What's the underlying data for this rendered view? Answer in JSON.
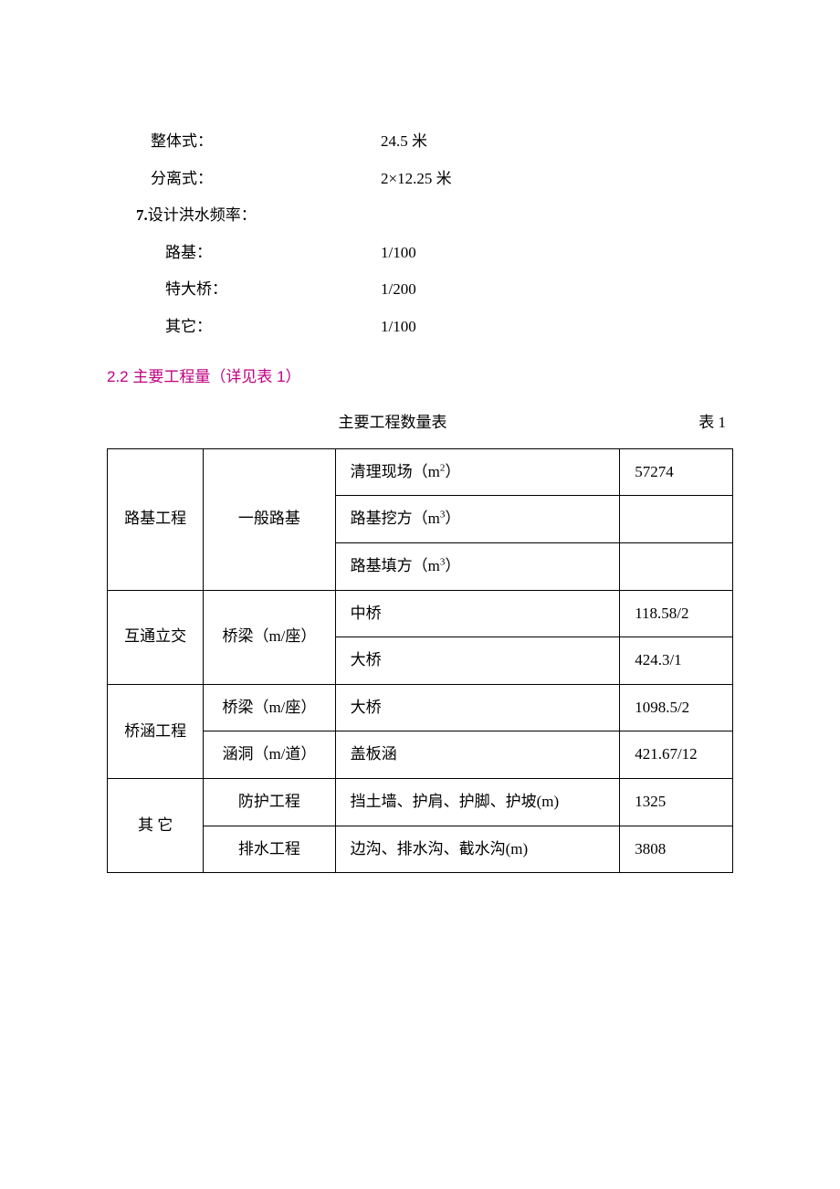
{
  "specs": {
    "rows": [
      {
        "label": "整体式：",
        "value": "24.5 米",
        "indent": "indent1"
      },
      {
        "label": "分离式：",
        "value": "2×12.25 米",
        "indent": "indent1"
      },
      {
        "label": "7.设计洪水频率：",
        "value": "",
        "indent": "boldnum",
        "bold_prefix": "7."
      },
      {
        "label": "路基：",
        "value": "1/100",
        "indent": "indent2"
      },
      {
        "label": "特大桥：",
        "value": "1/200",
        "indent": "indent2"
      },
      {
        "label": "其它：",
        "value": "1/100",
        "indent": "indent2"
      }
    ]
  },
  "heading": "2.2 主要工程量（详见表 1）",
  "table": {
    "caption_center": "主要工程数量表",
    "caption_right": "表 1",
    "rows": [
      {
        "c1": "路基工程",
        "c1_rowspan": 3,
        "c2": "一般路基",
        "c2_rowspan": 3,
        "c3_html": "清理现场（m<sup>2</sup>）",
        "c4": "57274"
      },
      {
        "c3_html": "路基挖方（m<sup>3</sup>）",
        "c4": ""
      },
      {
        "c3_html": "路基填方（m<sup>3</sup>）",
        "c4": ""
      },
      {
        "c1": "互通立交",
        "c1_rowspan": 2,
        "c2": "桥梁（m/座）",
        "c2_rowspan": 2,
        "c3": "中桥",
        "c4": "118.58/2"
      },
      {
        "c3": "大桥",
        "c4": "424.3/1"
      },
      {
        "c1": "桥涵工程",
        "c1_rowspan": 2,
        "c2": "桥梁（m/座）",
        "c3": "大桥",
        "c4": "1098.5/2"
      },
      {
        "c2": "涵洞（m/道）",
        "c3": "盖板涵",
        "c4": "421.67/12"
      },
      {
        "c1_html": "其<span class=\"spaced\"> </span>它",
        "c1_rowspan": 2,
        "c2": "防护工程",
        "c3": "挡土墙、护肩、护脚、护坡(m)",
        "c4": "1325"
      },
      {
        "c2": "排水工程",
        "c3": "边沟、排水沟、截水沟(m)",
        "c4": "3808"
      }
    ]
  },
  "colors": {
    "heading": "#c00080",
    "text": "#000000",
    "border": "#000000",
    "background": "#ffffff"
  }
}
